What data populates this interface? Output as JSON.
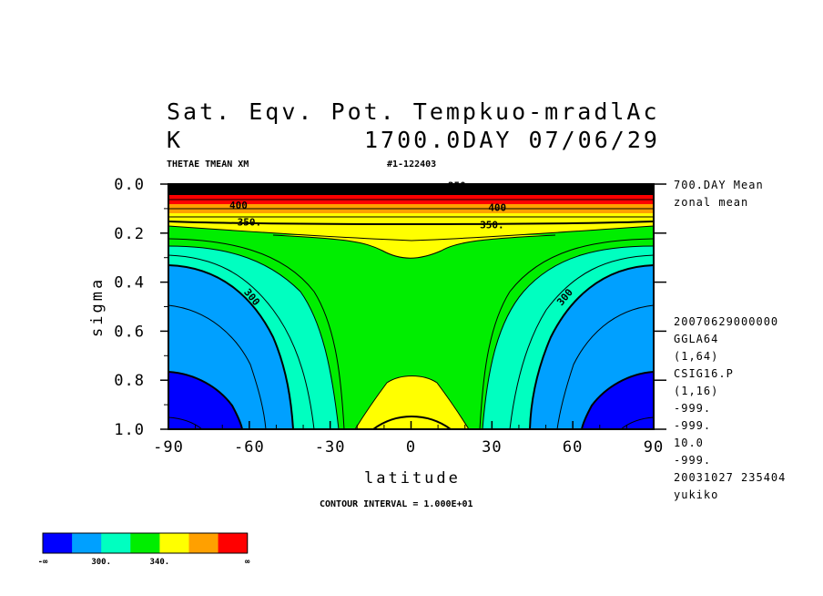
{
  "header": {
    "title_line1": "Sat. Eqv. Pot. Tempkuo-mradlAc",
    "title_unit": "K",
    "title_time": "1700.0DAY 07/06/29",
    "var_label": "THETAE TMEAN XM",
    "run_label": "#1-122403"
  },
  "side_info": {
    "top": [
      "700.DAY Mean",
      "zonal mean"
    ],
    "bottom": [
      "20070629000000",
      "GGLA64",
      "(1,64)",
      "CSIG16.P",
      "(1,16)",
      "-999.",
      "-999.",
      "10.0",
      "-999.",
      "20031027 235404",
      "yukiko"
    ]
  },
  "footer": {
    "contour_interval": "CONTOUR INTERVAL = 1.000E+01"
  },
  "chart_data": {
    "type": "heatmap",
    "xlabel": "latitude",
    "ylabel": "sigma",
    "xlim": [
      -90,
      90
    ],
    "ylim": [
      1.0,
      0.0
    ],
    "x_ticks": [
      -90,
      -60,
      -30,
      0,
      30,
      60,
      90
    ],
    "x_tick_labels": [
      "-90",
      "-60",
      "-30",
      "0",
      "30",
      "60",
      "90"
    ],
    "y_ticks": [
      0.0,
      0.2,
      0.4,
      0.6,
      0.8,
      1.0
    ],
    "y_tick_labels": [
      "0.0",
      "0.2",
      "0.4",
      "0.6",
      "0.8",
      "1.0"
    ],
    "contour_labels": [
      {
        "text": "350.",
        "lat": -60,
        "sigma": 0.17
      },
      {
        "text": "350.",
        "lat": 30,
        "sigma": 0.18
      },
      {
        "text": "300",
        "lat": -60,
        "sigma": 0.47
      },
      {
        "text": "300",
        "lat": 58,
        "sigma": 0.47
      },
      {
        "text": "400",
        "lat": -64,
        "sigma": 0.1
      },
      {
        "text": "400",
        "lat": 32,
        "sigma": 0.11
      },
      {
        "text": "350",
        "lat": 17,
        "sigma": 0.02
      }
    ],
    "colorbar": {
      "colors": [
        "#0000ff",
        "#00a0ff",
        "#00ffc0",
        "#00ee00",
        "#ffff00",
        "#ffa000",
        "#ff0000"
      ],
      "labels": [
        "-∞",
        "300.",
        "340.",
        "∞"
      ]
    }
  }
}
